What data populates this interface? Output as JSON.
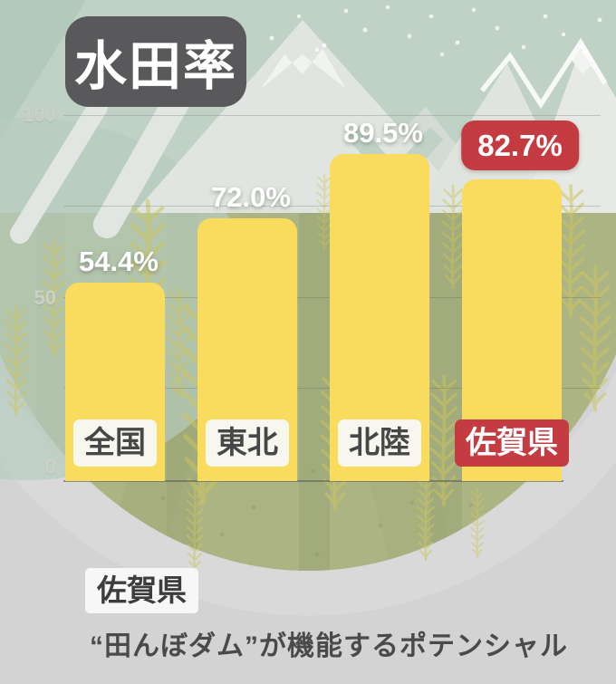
{
  "header": {
    "title": "水田率"
  },
  "chart_data": {
    "type": "bar",
    "title": "水田率",
    "categories": [
      "全国",
      "東北",
      "北陸",
      "佐賀県"
    ],
    "values": [
      54.4,
      72.0,
      89.5,
      82.7
    ],
    "value_labels": [
      "54.4%",
      "72.0%",
      "89.5%",
      "82.7%"
    ],
    "highlight_index": 3,
    "unit": "%",
    "ylim": [
      0,
      100
    ],
    "ytick_labels": [
      "100",
      "50",
      "0"
    ],
    "grid": "horizontal, every 25",
    "legend_position": "none",
    "colors": {
      "bar": "#f9dc5e",
      "highlight": "#c43c42",
      "title_badge": "#59595b",
      "value_text": "#ffffff",
      "category_text": "#474747",
      "sky": "#c0d2c6",
      "field": "#adb483",
      "ground_gray": "#d2d3d2"
    }
  },
  "footer": {
    "region_label": "佐賀県",
    "caption": "“田んぼダム”が機能するポテンシャル"
  }
}
